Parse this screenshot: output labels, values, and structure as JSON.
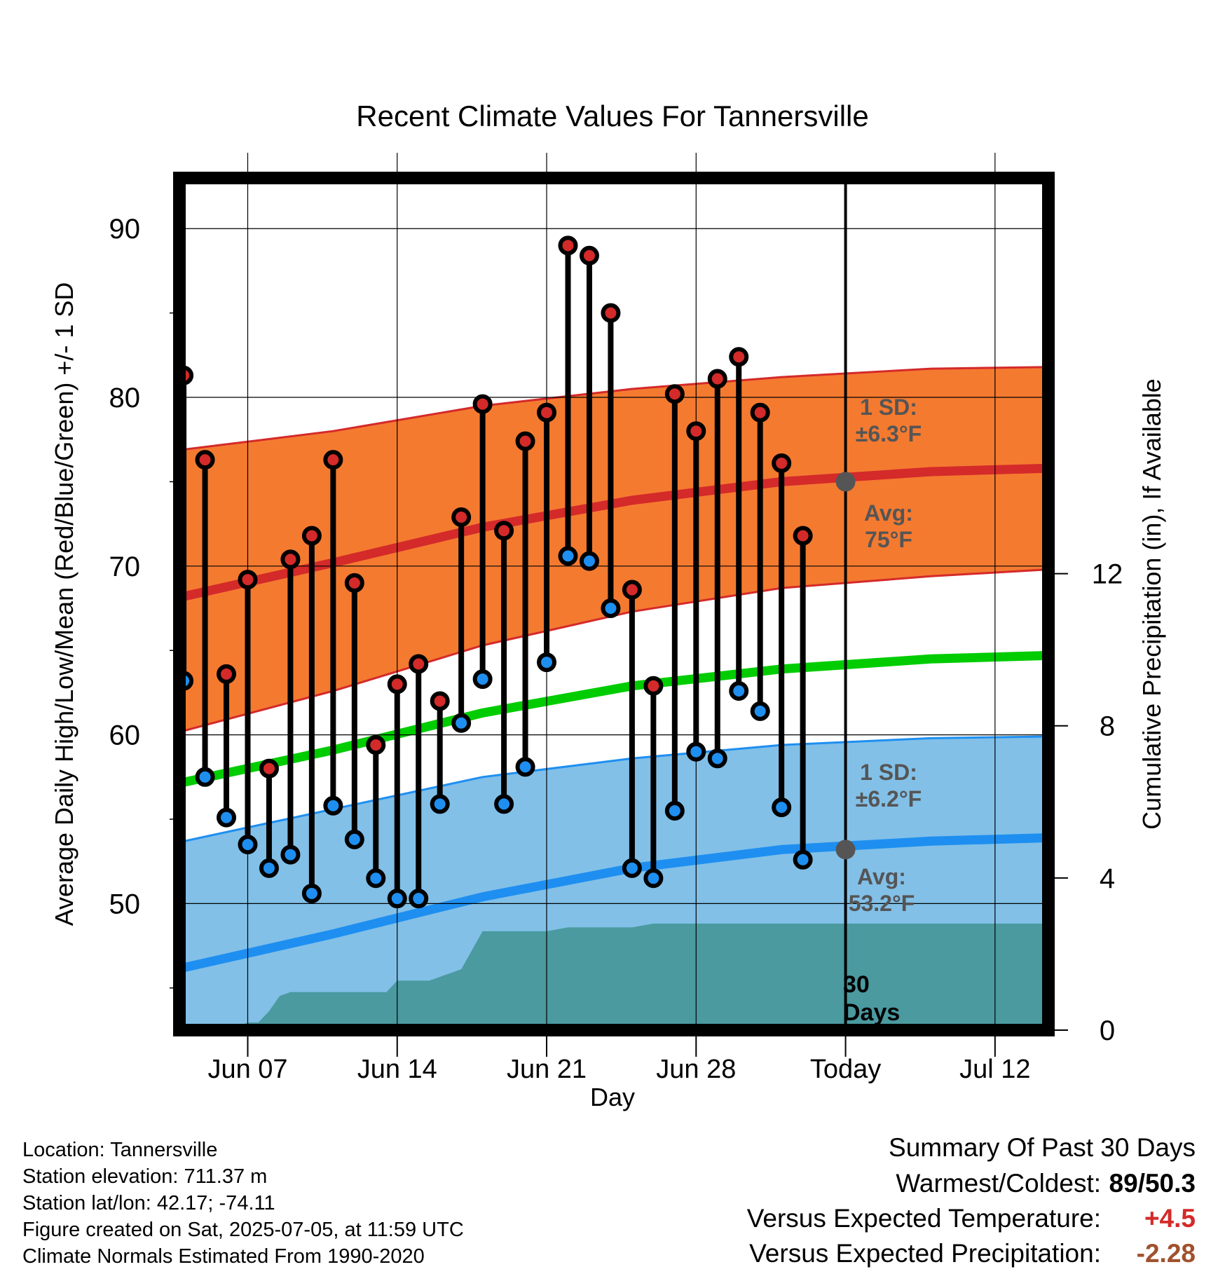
{
  "chart_data": {
    "type": "line",
    "title": "Recent Climate Values For Tannersville",
    "xlabel": "Day",
    "ylabel": "Average Daily High/Low/Mean (Red/Blue/Green) +/- 1 SD",
    "ylabel_right": "Cumulative Precipitation (in), If Available",
    "x_range": [
      -2.2,
      38.5
    ],
    "ylim": [
      42.5,
      93
    ],
    "y_ticks": [
      50,
      60,
      70,
      80,
      90
    ],
    "y_right_ticks": [
      0,
      4,
      8,
      12
    ],
    "y_right_lim": [
      0,
      22.4
    ],
    "x_ticks": [
      {
        "day": 1,
        "label": "Jun 07"
      },
      {
        "day": 8,
        "label": "Jun 14"
      },
      {
        "day": 15,
        "label": "Jun 21"
      },
      {
        "day": 22,
        "label": "Jun 28"
      },
      {
        "day": 29,
        "label": "Today"
      },
      {
        "day": 36,
        "label": "Jul 12"
      }
    ],
    "today_day": 29,
    "normals": {
      "day": [
        -2.7,
        5,
        12,
        19,
        26,
        33,
        38.5
      ],
      "high_avg": [
        68,
        70.2,
        72.3,
        73.9,
        75.0,
        75.6,
        75.8
      ],
      "high_upper": [
        76.8,
        78.0,
        79.5,
        80.5,
        81.2,
        81.7,
        81.8
      ],
      "high_lower": [
        60.0,
        62.6,
        65.3,
        67.3,
        68.7,
        69.4,
        69.8
      ],
      "mean_avg": [
        57.0,
        59.1,
        61.3,
        62.9,
        63.9,
        64.5,
        64.7
      ],
      "low_avg": [
        46.0,
        48.2,
        50.4,
        52.1,
        53.2,
        53.7,
        53.9
      ],
      "low_upper": [
        53.5,
        55.6,
        57.5,
        58.6,
        59.4,
        59.8,
        59.9
      ],
      "low_lower": [
        42.5,
        42.5,
        42.5,
        42.5,
        42.5,
        42.5,
        42.5
      ]
    },
    "normal_today": {
      "high": 75,
      "low": 53.2
    },
    "series": [
      {
        "name": "High",
        "values": [
          81.3,
          76.3,
          63.6,
          69.2,
          58.0,
          70.4,
          71.8,
          76.3,
          69.0,
          59.4,
          63.0,
          64.2,
          62.0,
          72.9,
          79.6,
          72.1,
          77.4,
          79.1,
          89.0,
          88.4,
          85.0,
          68.6,
          62.9,
          80.2,
          78.0,
          81.1,
          82.4,
          79.1,
          76.1,
          71.8
        ]
      },
      {
        "name": "Low",
        "values": [
          63.2,
          57.5,
          55.1,
          53.5,
          52.1,
          52.9,
          50.6,
          55.8,
          53.8,
          51.5,
          50.3,
          50.3,
          55.9,
          60.7,
          63.3,
          55.9,
          58.1,
          64.3,
          70.6,
          70.3,
          67.5,
          52.1,
          51.5,
          55.5,
          59.0,
          58.6,
          62.6,
          61.4,
          55.7,
          52.6
        ]
      }
    ],
    "obs_days": [
      -2,
      -1,
      0,
      1,
      2,
      3,
      4,
      5,
      6,
      7,
      8,
      9,
      10,
      11,
      12,
      13,
      14,
      15,
      16,
      17,
      18,
      19,
      20,
      21,
      22,
      23,
      24,
      25,
      26,
      27
    ],
    "precip": {
      "day": [
        -1.5,
        -0.5,
        0.5,
        1,
        1.5,
        2,
        2.5,
        3,
        4,
        5,
        6,
        6.5,
        7,
        7.5,
        8,
        9,
        9.5,
        10,
        10.5,
        11,
        12,
        14,
        15,
        16,
        17,
        18,
        19,
        20,
        21,
        22,
        23,
        24,
        25,
        26,
        27,
        28,
        29,
        38.5
      ],
      "inches": [
        0,
        0,
        0.1,
        0.2,
        0.2,
        0.5,
        0.9,
        1.0,
        1.0,
        1.0,
        1.0,
        1.0,
        1.0,
        1.0,
        1.3,
        1.3,
        1.3,
        1.4,
        1.5,
        1.6,
        2.6,
        2.6,
        2.6,
        2.7,
        2.7,
        2.7,
        2.7,
        2.8,
        2.8,
        2.8,
        2.8,
        2.8,
        2.8,
        2.8,
        2.8,
        2.8,
        2.8,
        2.8
      ]
    },
    "band_labels": {
      "high_sd": [
        "1 SD:",
        "±6.3°F"
      ],
      "high_avg": [
        "Avg:",
        "75°F"
      ],
      "low_sd": [
        "1 SD:",
        "±6.2°F"
      ],
      "low_avg": [
        "Avg:",
        "53.2°F"
      ],
      "period": [
        "30",
        "Days"
      ]
    },
    "colors": {
      "high_band": "#F47A30",
      "high_line": "#D42A2A",
      "mean_line": "#00CC00",
      "low_band": "#82C0E8",
      "low_line": "#1E8FF0",
      "precip": "#4A9AA0",
      "high_dot": "#D42A2A",
      "low_dot": "#1E8FF0",
      "today_dot": "#555555"
    },
    "grid": true
  },
  "footer": {
    "location": "Location: Tannersville",
    "elevation": "Station elevation: 711.37 m",
    "latlon": "Station lat/lon: 42.17; -74.11",
    "created": "Figure created on Sat, 2025-07-05, at 11:59 UTC",
    "normals": "Climate Normals Estimated From 1990-2020"
  },
  "summary": {
    "heading": "Summary Of Past 30 Days",
    "warmest_label": "Warmest/Coldest:",
    "warmest_value": "89/50.3",
    "temp_label": "Versus Expected Temperature:",
    "temp_value": "+4.5",
    "temp_color": "#D42A2A",
    "precip_label": "Versus Expected Precipitation:",
    "precip_value": "-2.28",
    "precip_color": "#A0522D"
  }
}
